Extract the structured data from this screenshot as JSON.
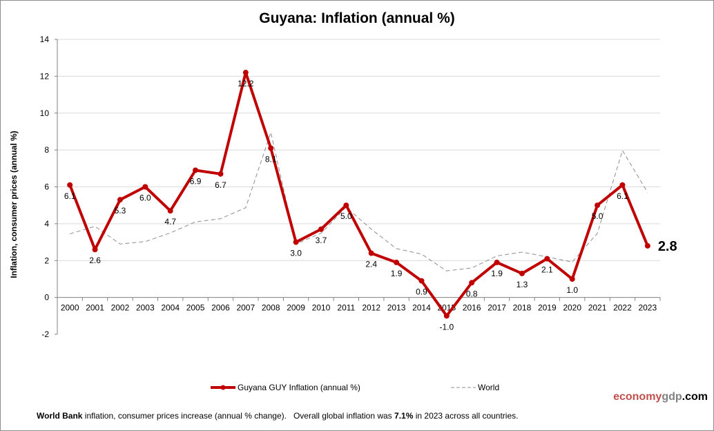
{
  "chart_data": {
    "type": "line",
    "title": "Guyana: Inflation (annual %)",
    "ylabel": "Inflation, consumer prices (annual %)",
    "xlabel": "",
    "ylim": [
      -2,
      14
    ],
    "yticks": [
      -2,
      0,
      2,
      4,
      6,
      8,
      10,
      12,
      14
    ],
    "grid": true,
    "legend_position": "bottom",
    "categories": [
      "2000",
      "2001",
      "2002",
      "2003",
      "2004",
      "2005",
      "2006",
      "2007",
      "2008",
      "2009",
      "2010",
      "2011",
      "2012",
      "2013",
      "2014",
      "2015",
      "2016",
      "2017",
      "2018",
      "2019",
      "2020",
      "2021",
      "2022",
      "2023"
    ],
    "series": [
      {
        "name": "Guyana GUY Inflation (annual %)",
        "color": "#c00000",
        "values": [
          6.1,
          2.6,
          5.3,
          6.0,
          4.7,
          6.9,
          6.7,
          12.2,
          8.1,
          3.0,
          3.7,
          5.0,
          2.4,
          1.9,
          0.9,
          -1.0,
          0.8,
          1.9,
          1.3,
          2.1,
          1.0,
          5.0,
          6.1,
          2.8
        ],
        "last_label": "2.8"
      },
      {
        "name": "World",
        "color": "#8c8c8c",
        "dashed": true,
        "values": [
          3.45,
          3.86,
          2.9,
          3.03,
          3.5,
          4.1,
          4.27,
          4.87,
          8.95,
          2.9,
          3.48,
          4.9,
          3.7,
          2.65,
          2.35,
          1.44,
          1.6,
          2.25,
          2.46,
          2.2,
          1.92,
          3.48,
          7.97,
          5.7
        ]
      }
    ]
  },
  "brand": {
    "part1": "economy",
    "part2": "gdp",
    "part3": ".com",
    "color1": "#c0504d",
    "color2": "#808080"
  },
  "footer": {
    "source_bold": "World Bank",
    "text1": " inflation, consumer prices increase (annual % change).   Overall global inflation was ",
    "value_bold": "7.1%",
    "text2": " in 2023 across all countries."
  }
}
